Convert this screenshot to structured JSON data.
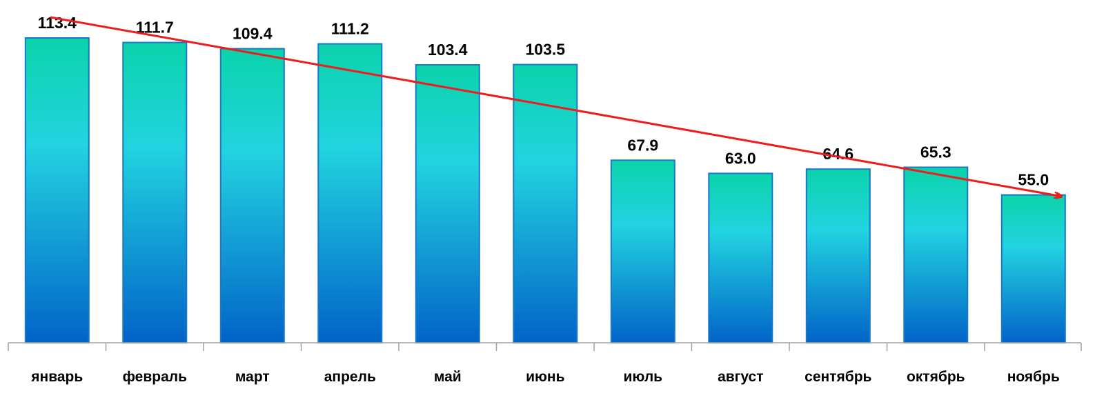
{
  "chart_data": {
    "type": "bar",
    "categories": [
      "январь",
      "февраль",
      "март",
      "апрель",
      "май",
      "июнь",
      "июль",
      "август",
      "сентябрь",
      "октябрь",
      "ноябрь"
    ],
    "series": [
      {
        "values": [
          113.4,
          111.7,
          109.4,
          111.2,
          103.4,
          103.5,
          67.9,
          63.0,
          64.6,
          65.3,
          55.0
        ]
      }
    ],
    "value_labels": [
      "113.4",
      "111.7",
      "109.4",
      "111.2",
      "103.4",
      "103.5",
      "67.9",
      "63.0",
      "64.6",
      "65.3",
      "55.0"
    ],
    "ylim": [
      0,
      113.4
    ],
    "grid": false,
    "legend": "none",
    "trend_arrow": {
      "from_category": "январь",
      "to_category": "ноябрь",
      "color": "#ee1c1c"
    },
    "colors": {
      "bar_top": "#0bd3ab",
      "bar_mid": "#22d3e0",
      "bar_bottom": "#0263c8",
      "bar_border": "#1a78c8",
      "axis": "#a0a0a0",
      "label": "#000000"
    }
  }
}
